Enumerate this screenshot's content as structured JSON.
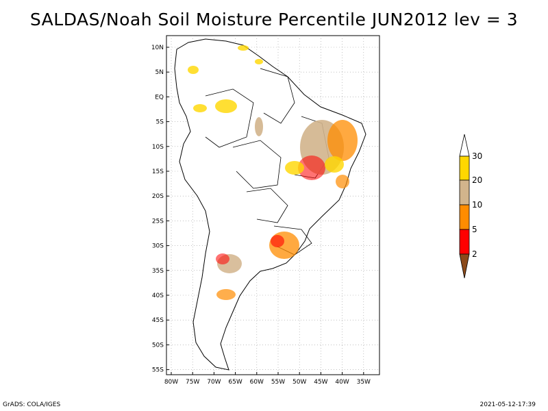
{
  "title": "SALDAS/Noah Soil Moisture Percentile JUN2012 lev = 3",
  "lat_ticks": [
    "10N",
    "5N",
    "EQ",
    "5S",
    "10S",
    "15S",
    "20S",
    "25S",
    "30S",
    "35S",
    "40S",
    "45S",
    "50S",
    "55S"
  ],
  "lon_ticks": [
    "80W",
    "75W",
    "70W",
    "65W",
    "60W",
    "55W",
    "50W",
    "45W",
    "40W",
    "35W"
  ],
  "legend": {
    "labels": [
      "2",
      "5",
      "10",
      "20",
      "30"
    ],
    "colors": [
      "#8b4a1a",
      "#ff0000",
      "#ff8c00",
      "#d2b48c",
      "#ffd700",
      "#ffffff"
    ]
  },
  "colors": {
    "drought_fill": "#d2b48c",
    "frame": "#000000",
    "grid": "#999999"
  },
  "footer": {
    "left": "GrADS: COLA/IGES",
    "right": "2021-05-12-17:39"
  }
}
